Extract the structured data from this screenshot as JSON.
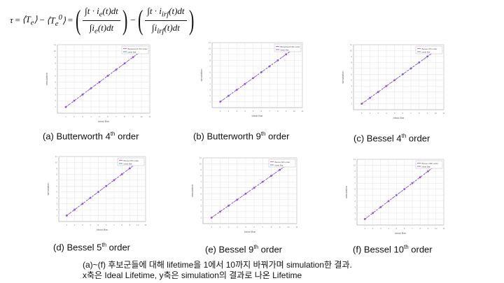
{
  "formula": {
    "tau": "τ",
    "equals": "=",
    "langle_te": "⟨T",
    "sub_e": "e",
    "rangle": "⟩",
    "minus": "−",
    "langle_te0": "⟨T",
    "sup_0": "0",
    "num1": "∫t · i",
    "num1_sub": "e",
    "num1_tail": "(t)dt",
    "den1": "∫i",
    "den1_sub": "e",
    "den1_tail": "(t)dt",
    "num2": "∫t · i",
    "num2_sub": "irf",
    "num2_tail": "(t)dt",
    "den2": "∫i",
    "den2_sub": "irf",
    "den2_tail": "(t)dt"
  },
  "panels": [
    {
      "id": "a",
      "caption_prefix": "(a) Butterworth 4",
      "caption_sup": "th",
      "caption_suffix": " order",
      "legend": [
        "Butterworth 4th order",
        "Ideal Bar"
      ],
      "ylabel": "simulation",
      "xlabel": "Ideal Bar"
    },
    {
      "id": "b",
      "caption_prefix": "(b) Butterworth 9",
      "caption_sup": "th",
      "caption_suffix": " order",
      "legend": [
        "Butterworth 9th order",
        "Ideal Bar"
      ],
      "ylabel": "simulation",
      "xlabel": "Ideal Bar"
    },
    {
      "id": "c",
      "caption_prefix": "(c) Bessel 4",
      "caption_sup": "th",
      "caption_suffix": " order",
      "legend": [
        "Bessel 4th order",
        "Ideal Bar"
      ],
      "ylabel": "simulation",
      "xlabel": "Ideal Bar"
    },
    {
      "id": "d",
      "caption_prefix": "(d) Bessel 5",
      "caption_sup": "th",
      "caption_suffix": " order",
      "legend": [
        "Bessel 5th order",
        "Ideal Bar"
      ],
      "ylabel": "simulation",
      "xlabel": "Ideal Bar"
    },
    {
      "id": "e",
      "caption_prefix": "(e) Bessel 9",
      "caption_sup": "th",
      "caption_suffix": " order",
      "legend": [
        "Bessel 9th order",
        "Ideal Bar"
      ],
      "ylabel": "simulation",
      "xlabel": "Ideal Bar"
    },
    {
      "id": "f",
      "caption_prefix": "(f) Bessel 10",
      "caption_sup": "th",
      "caption_suffix": " order",
      "legend": [
        "Bessel 10th order",
        "Ideal Bar"
      ],
      "ylabel": "simulation",
      "xlabel": "Ideal Bar"
    }
  ],
  "chart_data": {
    "type": "line",
    "x": [
      1,
      2,
      3,
      4,
      5,
      6,
      7,
      8,
      9,
      10
    ],
    "series": [
      {
        "values": [
          1,
          2,
          3,
          4,
          5,
          6,
          7,
          8,
          9,
          10
        ],
        "color": "#cc44cc"
      },
      {
        "values": [
          1,
          2,
          3,
          4,
          5,
          6,
          7,
          8,
          9,
          10
        ],
        "color": "#4466dd"
      }
    ],
    "xlim": [
      0,
      11
    ],
    "ylim": [
      0,
      11
    ],
    "ticks": [
      "1",
      "2",
      "3",
      "4",
      "5",
      "6",
      "7",
      "8",
      "9",
      "10",
      "11"
    ],
    "grid": true
  },
  "note": {
    "line1": "(a)~(f) 후보군들에 대해 lifetime을 1에서 10까지 바꿔가며 simulation한 결과.",
    "line2": "x축은 Ideal Lifetime, y축은 simulation의 결과로 나온 Lifetime"
  }
}
